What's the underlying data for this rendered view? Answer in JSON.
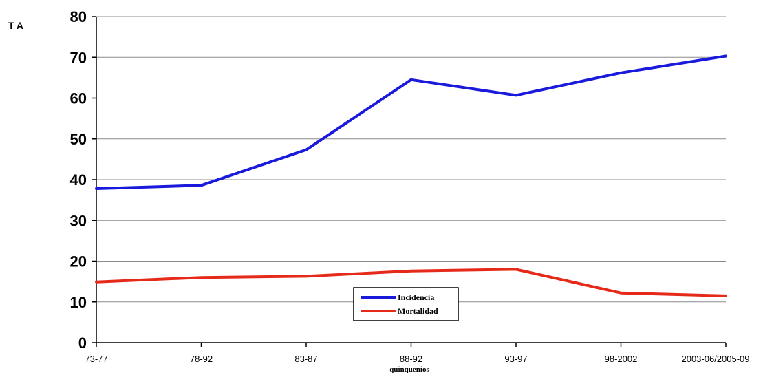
{
  "chart_data": {
    "type": "line",
    "ylabel": "T A",
    "xlabel": "quinquenios",
    "categories": [
      "73-77",
      "78-92",
      "83-87",
      "88-92",
      "93-97",
      "98-2002",
      "2003-06/2005-09"
    ],
    "ylim": [
      0,
      80
    ],
    "yticks": [
      0,
      10,
      20,
      30,
      40,
      50,
      60,
      70,
      80
    ],
    "grid": true,
    "legend_position": "bottom-center",
    "series": [
      {
        "name": "Incidencia",
        "color": "#1a1adc",
        "values": [
          37.8,
          38.6,
          47.3,
          64.5,
          60.7,
          66.2,
          70.3
        ]
      },
      {
        "name": "Mortalidad",
        "color": "#e62a1a",
        "values": [
          14.9,
          16.0,
          16.3,
          17.6,
          18.0,
          12.2,
          11.5
        ]
      }
    ]
  }
}
